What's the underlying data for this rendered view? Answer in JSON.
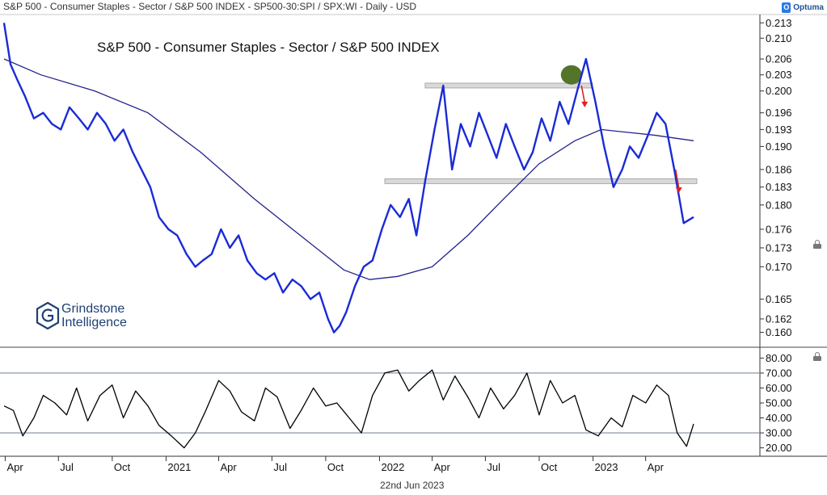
{
  "header": {
    "text": "S&P 500 - Consumer Staples - Sector / S&P 500 INDEX - SP500-30:SPI / SPX:WI - Daily - USD",
    "logo_text": "Optuma"
  },
  "watermark": {
    "line1": "Grindstone",
    "line2": "Intelligence"
  },
  "date_label": "22nd Jun 2023",
  "colors": {
    "ratio_line": "#1a2bd6",
    "ma_line": "#23238c",
    "indicator_line": "#000000",
    "band_fill": "#d9d9d9",
    "circle_fill": "#4a6e1f",
    "arrow": "#e02020",
    "grid_line": "#7f8ba0"
  },
  "chart_data": [
    {
      "type": "line",
      "title": "S&P 500 - Consumer Staples - Sector / S&P 500 INDEX",
      "xlabel": "",
      "ylabel": "",
      "log_scale": true,
      "x_ticks": [
        "Apr",
        "Jul",
        "Oct",
        "2021",
        "Apr",
        "Jul",
        "Oct",
        "2022",
        "Apr",
        "Jul",
        "Oct",
        "2023",
        "Apr"
      ],
      "y_ticks": [
        "0.160",
        "0.162",
        "0.165",
        "0.170",
        "0.173",
        "0.176",
        "0.180",
        "0.183",
        "0.186",
        "0.190",
        "0.193",
        "0.196",
        "0.200",
        "0.203",
        "0.206",
        "0.210",
        "0.213"
      ],
      "ylim": [
        0.159,
        0.214
      ],
      "x_range": [
        "2020-03-30",
        "2023-06-22"
      ],
      "series": [
        {
          "role": "ratio",
          "x": [
            "2020-03-30",
            "2020-04-10",
            "2020-04-22",
            "2020-05-05",
            "2020-05-20",
            "2020-06-05",
            "2020-06-20",
            "2020-07-05",
            "2020-07-20",
            "2020-08-05",
            "2020-08-20",
            "2020-09-05",
            "2020-09-20",
            "2020-10-05",
            "2020-10-20",
            "2020-11-05",
            "2020-11-20",
            "2020-12-05",
            "2020-12-20",
            "2021-01-05",
            "2021-01-20",
            "2021-02-05",
            "2021-02-20",
            "2021-03-05",
            "2021-03-20",
            "2021-04-05",
            "2021-04-20",
            "2021-05-05",
            "2021-05-20",
            "2021-06-05",
            "2021-06-20",
            "2021-07-05",
            "2021-07-20",
            "2021-08-05",
            "2021-08-20",
            "2021-09-05",
            "2021-09-20",
            "2021-10-05",
            "2021-10-15",
            "2021-10-25",
            "2021-11-05",
            "2021-11-20",
            "2021-12-05",
            "2021-12-20",
            "2022-01-05",
            "2022-01-20",
            "2022-02-05",
            "2022-02-20",
            "2022-03-05",
            "2022-03-20",
            "2022-04-05",
            "2022-04-20",
            "2022-05-05",
            "2022-05-20",
            "2022-06-05",
            "2022-06-20",
            "2022-07-05",
            "2022-07-20",
            "2022-08-05",
            "2022-08-20",
            "2022-09-05",
            "2022-09-20",
            "2022-10-05",
            "2022-10-20",
            "2022-11-05",
            "2022-11-20",
            "2022-12-05",
            "2022-12-20",
            "2023-01-05",
            "2023-01-20",
            "2023-02-05",
            "2023-02-20",
            "2023-03-05",
            "2023-03-20",
            "2023-04-05",
            "2023-04-20",
            "2023-05-05",
            "2023-05-20",
            "2023-06-05",
            "2023-06-22"
          ],
          "values": [
            0.213,
            0.205,
            0.202,
            0.199,
            0.195,
            0.196,
            0.194,
            0.193,
            0.197,
            0.195,
            0.193,
            0.196,
            0.194,
            0.191,
            0.193,
            0.189,
            0.186,
            0.183,
            0.178,
            0.176,
            0.175,
            0.172,
            0.17,
            0.171,
            0.172,
            0.176,
            0.173,
            0.175,
            0.171,
            0.169,
            0.168,
            0.169,
            0.166,
            0.168,
            0.167,
            0.165,
            0.166,
            0.162,
            0.16,
            0.161,
            0.163,
            0.167,
            0.17,
            0.171,
            0.176,
            0.18,
            0.178,
            0.181,
            0.175,
            0.184,
            0.193,
            0.201,
            0.186,
            0.194,
            0.19,
            0.196,
            0.192,
            0.188,
            0.194,
            0.19,
            0.186,
            0.189,
            0.195,
            0.191,
            0.198,
            0.194,
            0.2,
            0.206,
            0.198,
            0.19,
            0.183,
            0.186,
            0.19,
            0.188,
            0.192,
            0.196,
            0.194,
            0.186,
            0.177,
            0.178
          ]
        },
        {
          "role": "moving-average",
          "x": [
            "2020-03-30",
            "2020-06-01",
            "2020-09-01",
            "2020-12-01",
            "2021-03-01",
            "2021-06-01",
            "2021-09-01",
            "2021-11-01",
            "2021-12-15",
            "2022-02-01",
            "2022-04-01",
            "2022-06-01",
            "2022-08-01",
            "2022-10-01",
            "2022-12-01",
            "2023-01-15",
            "2023-03-01",
            "2023-04-15",
            "2023-06-22"
          ],
          "values": [
            0.206,
            0.203,
            0.2,
            0.196,
            0.189,
            0.181,
            0.174,
            0.1695,
            0.168,
            0.1685,
            0.17,
            0.175,
            0.181,
            0.187,
            0.191,
            0.193,
            0.1925,
            0.192,
            0.191
          ]
        }
      ],
      "annotations": [
        {
          "kind": "band",
          "x_start": "2022-03-20",
          "x_end": "2022-12-31",
          "y": 0.201
        },
        {
          "kind": "band",
          "x_start": "2022-01-10",
          "x_end": "2023-06-22",
          "y": 0.184
        },
        {
          "kind": "circle",
          "x": "2022-11-25",
          "y": 0.203
        },
        {
          "kind": "arrow-down",
          "x": "2022-12-15",
          "y_from": 0.201,
          "y_to": 0.197
        },
        {
          "kind": "arrow-down",
          "x": "2023-05-25",
          "y_from": 0.186,
          "y_to": 0.182
        }
      ]
    },
    {
      "type": "line",
      "title": "",
      "xlabel": "",
      "ylabel": "",
      "y_ticks": [
        "20.00",
        "30.00",
        "40.00",
        "50.00",
        "60.00",
        "70.00",
        "80.00"
      ],
      "ylim": [
        16,
        84
      ],
      "reference_lines": [
        70,
        30
      ],
      "series": [
        {
          "role": "indicator",
          "x": [
            "2020-03-30",
            "2020-04-15",
            "2020-05-01",
            "2020-05-20",
            "2020-06-05",
            "2020-06-25",
            "2020-07-15",
            "2020-08-01",
            "2020-08-20",
            "2020-09-10",
            "2020-10-01",
            "2020-10-20",
            "2020-11-10",
            "2020-12-01",
            "2020-12-20",
            "2021-01-10",
            "2021-02-01",
            "2021-02-20",
            "2021-03-10",
            "2021-04-01",
            "2021-04-20",
            "2021-05-10",
            "2021-06-01",
            "2021-06-20",
            "2021-07-10",
            "2021-08-01",
            "2021-08-20",
            "2021-09-10",
            "2021-10-01",
            "2021-10-20",
            "2021-11-10",
            "2021-12-01",
            "2021-12-20",
            "2022-01-10",
            "2022-02-01",
            "2022-02-20",
            "2022-03-10",
            "2022-04-01",
            "2022-04-20",
            "2022-05-10",
            "2022-06-01",
            "2022-06-20",
            "2022-07-10",
            "2022-08-01",
            "2022-08-20",
            "2022-09-10",
            "2022-10-01",
            "2022-10-20",
            "2022-11-10",
            "2022-12-01",
            "2022-12-20",
            "2023-01-10",
            "2023-02-01",
            "2023-02-20",
            "2023-03-10",
            "2023-04-01",
            "2023-04-20",
            "2023-05-10",
            "2023-05-25",
            "2023-06-10",
            "2023-06-22"
          ],
          "values": [
            48,
            45,
            28,
            40,
            55,
            50,
            42,
            60,
            38,
            55,
            62,
            40,
            58,
            48,
            35,
            28,
            20,
            30,
            45,
            65,
            58,
            44,
            38,
            60,
            54,
            33,
            45,
            60,
            48,
            50,
            40,
            30,
            55,
            70,
            72,
            58,
            65,
            72,
            52,
            68,
            54,
            40,
            60,
            46,
            55,
            70,
            42,
            65,
            50,
            55,
            32,
            28,
            40,
            34,
            55,
            50,
            62,
            55,
            30,
            21,
            36
          ]
        }
      ]
    }
  ]
}
